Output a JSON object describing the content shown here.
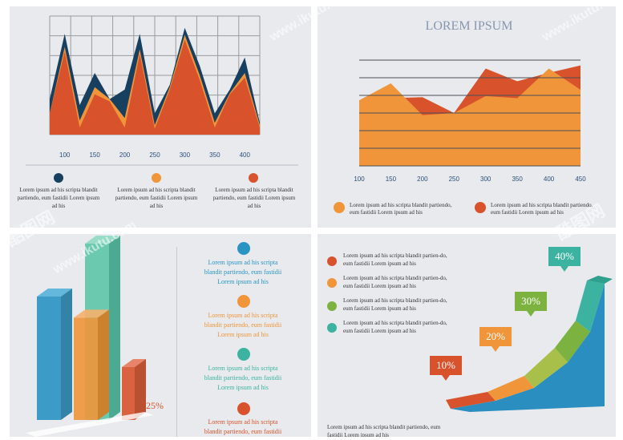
{
  "colors": {
    "dark": "#173f5f",
    "orange": "#f0953a",
    "red": "#d8532c",
    "teal": "#3cb3a0",
    "blue": "#2a94c2",
    "green": "#7cb240",
    "mint": "#5cc5a6",
    "grid": "#9b9b9b",
    "title": "#8796b0"
  },
  "chart_data": [
    {
      "type": "area",
      "title": "",
      "x": [
        75,
        100,
        125,
        150,
        175,
        200,
        225,
        250,
        275,
        300,
        325,
        350,
        375,
        400,
        425
      ],
      "xticks": [
        "100",
        "150",
        "200",
        "250",
        "300",
        "350",
        "400"
      ],
      "ylim": [
        0,
        100
      ],
      "series": [
        {
          "name": "dark",
          "values": [
            30,
            85,
            25,
            52,
            30,
            38,
            85,
            18,
            42,
            90,
            58,
            18,
            38,
            65,
            10
          ]
        },
        {
          "name": "orange",
          "values": [
            18,
            74,
            12,
            40,
            30,
            14,
            72,
            8,
            40,
            84,
            50,
            10,
            35,
            52,
            8
          ]
        },
        {
          "name": "red",
          "values": [
            18,
            70,
            6,
            34,
            28,
            6,
            68,
            5,
            38,
            80,
            46,
            6,
            34,
            48,
            6
          ]
        }
      ]
    },
    {
      "type": "area",
      "title": "LOREM IPSUM",
      "x": [
        100,
        150,
        200,
        250,
        300,
        350,
        400,
        450
      ],
      "xticks": [
        "100",
        "150",
        "200",
        "250",
        "300",
        "350",
        "400",
        "450"
      ],
      "ylim": [
        0,
        100
      ],
      "series": [
        {
          "name": "red",
          "values": [
            62,
            64,
            65,
            50,
            92,
            80,
            88,
            95
          ]
        },
        {
          "name": "orange",
          "values": [
            62,
            78,
            48,
            50,
            66,
            64,
            92,
            72
          ]
        }
      ]
    },
    {
      "type": "bar",
      "categories": [
        "blue",
        "orange",
        "green",
        "red"
      ],
      "values": [
        70,
        58,
        100,
        30
      ],
      "annotation": "25%"
    },
    {
      "type": "area",
      "labels": [
        "10%",
        "20%",
        "30%",
        "40%"
      ],
      "values": [
        10,
        20,
        30,
        40
      ]
    }
  ],
  "panel1": {
    "legend": [
      {
        "text": "Lorem ipsum ad his scripta blandit partiendo, eum fastidii Lorem ipsum ad his",
        "color": "#173f5f"
      },
      {
        "text": "Lorem ipsum ad his scripta blandit partiendo, eum fastidii Lorem ipsum ad his",
        "color": "#f0953a"
      },
      {
        "text": "Lorem ipsum ad his scripta blandit partiendo, eum fastidii Lorem ipsum ad his",
        "color": "#d8532c"
      }
    ]
  },
  "panel2": {
    "legend": [
      {
        "text": "Lorem ipsum ad his scripta blandit partiendo, eum fastidii Lorem ipsum ad his",
        "color": "#f0953a"
      },
      {
        "text": "Lorem ipsum ad his scripta blandit partiendo, eum fastidii Lorem ipsum ad his",
        "color": "#d8532c"
      }
    ]
  },
  "panel3": {
    "items": [
      {
        "text": "Lorem ipsum ad his scripta blandit partiendo, eum fastidii Lorem ipsum ad his",
        "color": "#2a94c2"
      },
      {
        "text": "Lorem ipsum ad his scripta blandit partiendo, eum fastidii Lorem ipsum ad his",
        "color": "#f0953a"
      },
      {
        "text": "Lorem ipsum ad his scripta blandit partiendo, eum fastidii Lorem ipsum ad his",
        "color": "#3cb3a0"
      },
      {
        "text": "Lorem ipsum ad his scripta blandit partiendo, eum fastidii",
        "color": "#d8532c"
      }
    ]
  },
  "panel4": {
    "legend": [
      {
        "text": "Lorem ipsum ad his scripta blandit partien-do, eum fastidii Lorem ipsum ad his",
        "color": "#d8532c"
      },
      {
        "text": "Lorem ipsum ad his scripta blandit partien-do, eum fastidii Lorem ipsum ad his",
        "color": "#f0953a"
      },
      {
        "text": "Lorem ipsum ad his scripta blandit partien-do, eum fastidii Lorem ipsum ad his",
        "color": "#7cb240"
      },
      {
        "text": "Lorem ipsum ad his scripta blandit partien-do, eum fastidii Lorem ipsum ad his",
        "color": "#3cb3a0"
      }
    ],
    "footer": "Lorem ipsum ad his scripta blandit partiendo, eum fastidii Lorem ipsum ad his"
  },
  "watermarks": [
    "www.ikutu.com",
    "酷图网"
  ]
}
